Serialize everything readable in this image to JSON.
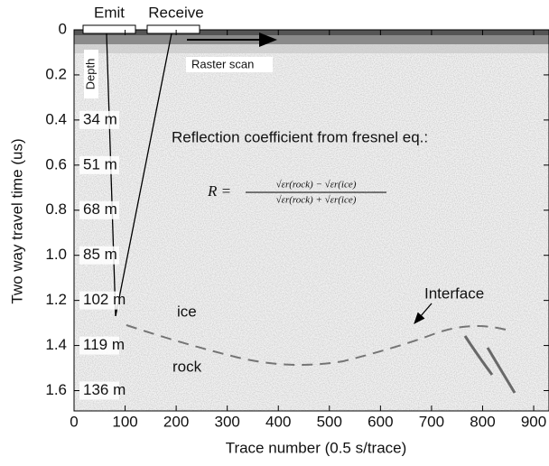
{
  "chart_data": {
    "type": "radargram",
    "xlabel": "Trace number (0.5 s/trace)",
    "ylabel": "Two way travel time (us)",
    "xlim": [
      0,
      930
    ],
    "xticks": [
      0,
      100,
      200,
      300,
      400,
      500,
      600,
      700,
      800,
      900
    ],
    "ylim": [
      0,
      1.69
    ],
    "yticks": [
      0,
      0.2,
      0.4,
      0.6,
      0.8,
      {
        "value": 1,
        "label": "1.0"
      },
      1.2,
      1.4,
      1.6
    ],
    "depth_title": "Depth",
    "depth_labels": [
      "34 m",
      "51 m",
      "68 m",
      "85 m",
      "102 m",
      "119 m",
      "136 m"
    ],
    "emit": "Emit",
    "receive": "Receive",
    "raster": "Raster scan",
    "annotation": "Reflection coefficient from fresnel eq.:",
    "formula": {
      "lhs": "R =",
      "numerator": "√εr(rock) − √εr(ice)",
      "denominator": "√εr(rock) + √εr(ice)"
    },
    "ice": "ice",
    "rock": "rock",
    "interface": "Interface"
  }
}
